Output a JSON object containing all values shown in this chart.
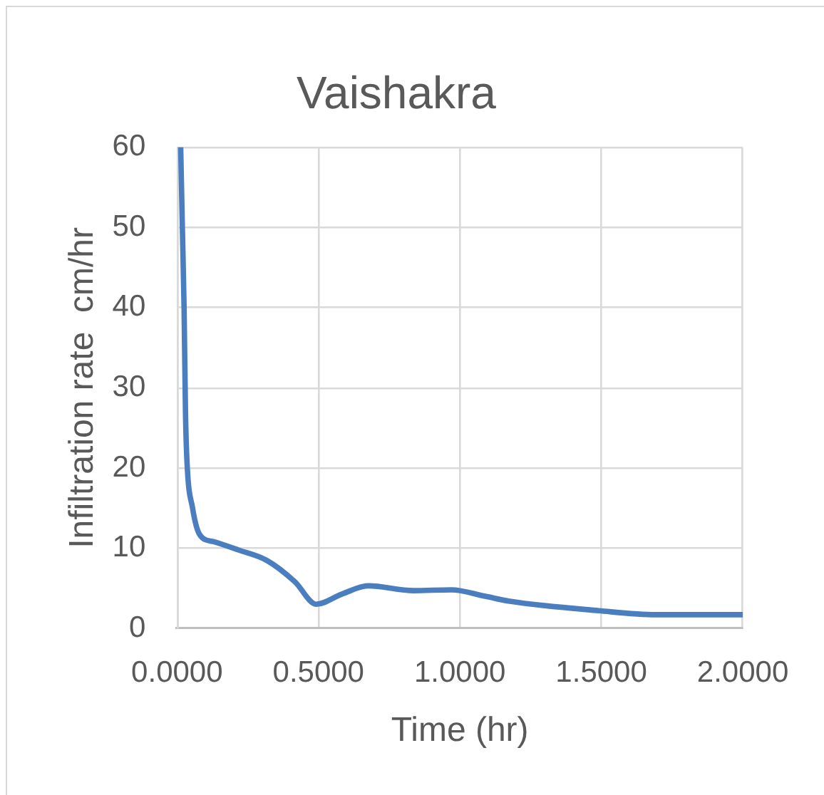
{
  "chart_data": {
    "type": "line",
    "title": "Vaishakra",
    "xlabel": "Time (hr)",
    "ylabel": "Infiltration rate  cm/hr",
    "x": [
      0.013,
      0.019,
      0.025,
      0.03,
      0.035,
      0.055,
      0.08,
      0.13,
      0.215,
      0.316,
      0.417,
      0.492,
      0.585,
      0.677,
      0.836,
      0.97,
      1.09,
      1.172,
      1.491,
      1.693,
      2.0
    ],
    "series": [
      {
        "color": "#4a7ebf",
        "values": [
          60,
          50,
          40,
          27,
          21,
          15,
          11.7,
          10.8,
          9.8,
          8.5,
          5.8,
          3.0,
          4.3,
          5.3,
          4.7,
          4.8,
          4.0,
          3.4,
          2.2,
          1.7,
          1.7
        ]
      }
    ],
    "xlim": [
      0,
      2
    ],
    "xticks": [
      {
        "value": 0,
        "label": "0.0000"
      },
      {
        "value": 0.5,
        "label": "0.5000"
      },
      {
        "value": 1,
        "label": "1.0000"
      },
      {
        "value": 1.5,
        "label": "1.5000"
      },
      {
        "value": 2,
        "label": "2.0000"
      }
    ],
    "ylim": [
      0,
      60
    ],
    "yticks": [
      0,
      10,
      20,
      30,
      40,
      50,
      60
    ],
    "grid": true,
    "legend": false,
    "marker": "none",
    "line_style": "solid"
  }
}
